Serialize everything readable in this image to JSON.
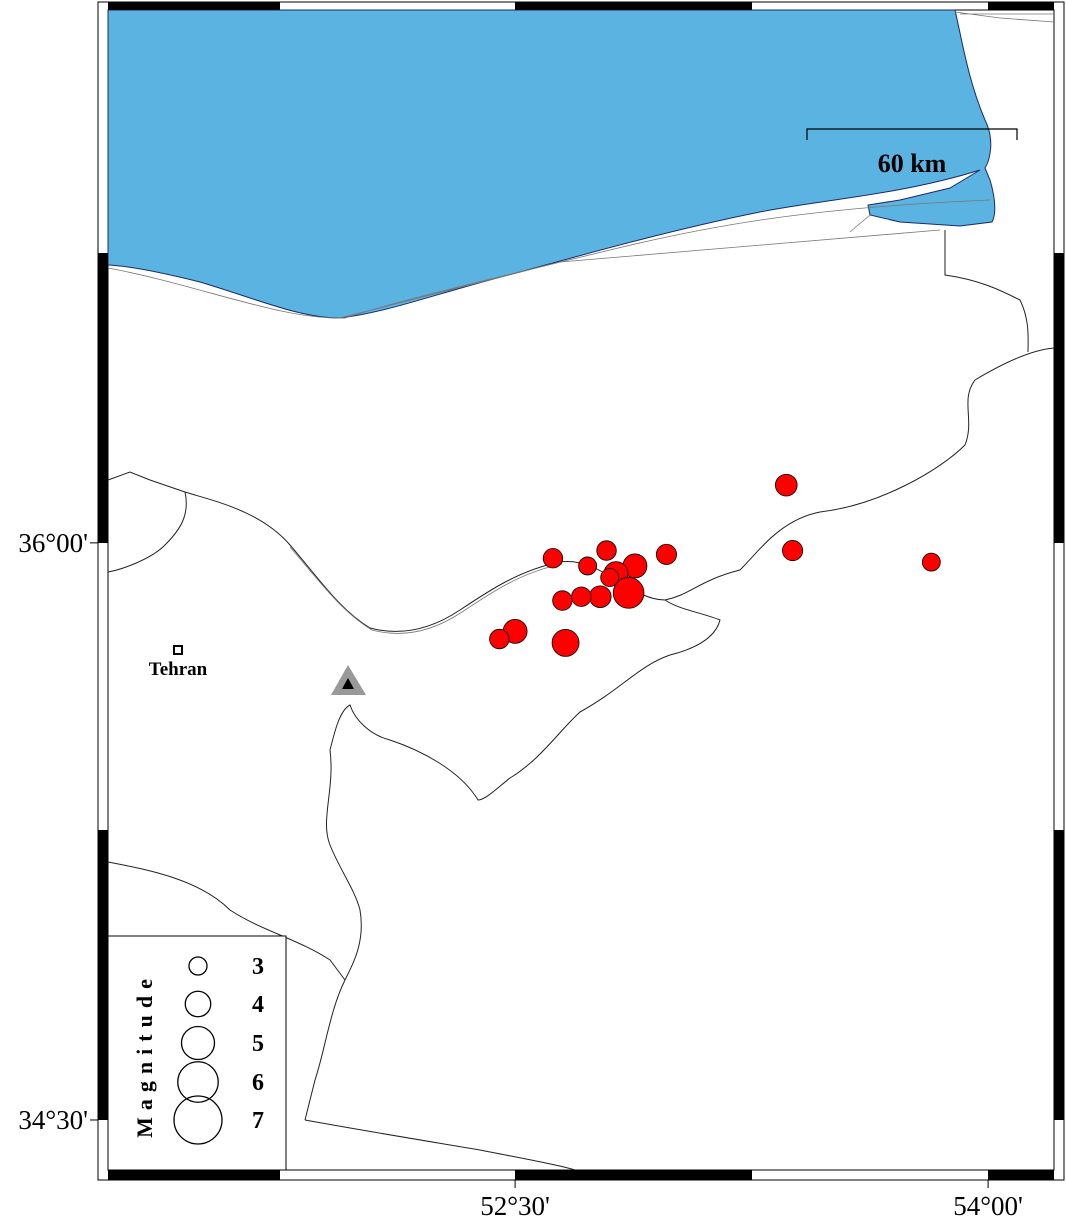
{
  "map": {
    "xlim": [
      51.209,
      54.209
    ],
    "ylim": [
      34.37,
      37.385
    ],
    "xticks": [
      {
        "value": 52.5,
        "label": "52°30'"
      },
      {
        "value": 54,
        "label": "54°00'"
      }
    ],
    "yticks": [
      {
        "value": 36,
        "label": "36°00'"
      },
      {
        "value": 34.5,
        "label": "34°30'"
      }
    ],
    "scale_label": "60 km",
    "city": "Tehran",
    "event_color": "#ff0000",
    "events": [
      {
        "lon": 53.36,
        "lat": 36.15,
        "mag": 3.5
      },
      {
        "lon": 52.62,
        "lat": 35.96,
        "mag": 3.2
      },
      {
        "lon": 52.79,
        "lat": 35.98,
        "mag": 3.2
      },
      {
        "lon": 52.98,
        "lat": 35.97,
        "mag": 3.3
      },
      {
        "lon": 52.73,
        "lat": 35.94,
        "mag": 3.0
      },
      {
        "lon": 52.88,
        "lat": 35.94,
        "mag": 3.8
      },
      {
        "lon": 52.82,
        "lat": 35.92,
        "mag": 3.8
      },
      {
        "lon": 52.8,
        "lat": 35.91,
        "mag": 3.0
      },
      {
        "lon": 52.86,
        "lat": 35.87,
        "mag": 4.7
      },
      {
        "lon": 52.77,
        "lat": 35.86,
        "mag": 3.5
      },
      {
        "lon": 52.71,
        "lat": 35.86,
        "mag": 3.2
      },
      {
        "lon": 52.65,
        "lat": 35.85,
        "mag": 3.2
      },
      {
        "lon": 52.5,
        "lat": 35.77,
        "mag": 3.8
      },
      {
        "lon": 52.45,
        "lat": 35.75,
        "mag": 3.2
      },
      {
        "lon": 52.66,
        "lat": 35.74,
        "mag": 4.2
      },
      {
        "lon": 53.38,
        "lat": 35.98,
        "mag": 3.3
      },
      {
        "lon": 53.82,
        "lat": 35.95,
        "mag": 3.0
      }
    ],
    "legend": {
      "title": "Magnitude",
      "magnitudes": [
        3,
        4,
        5,
        6,
        7
      ]
    }
  }
}
